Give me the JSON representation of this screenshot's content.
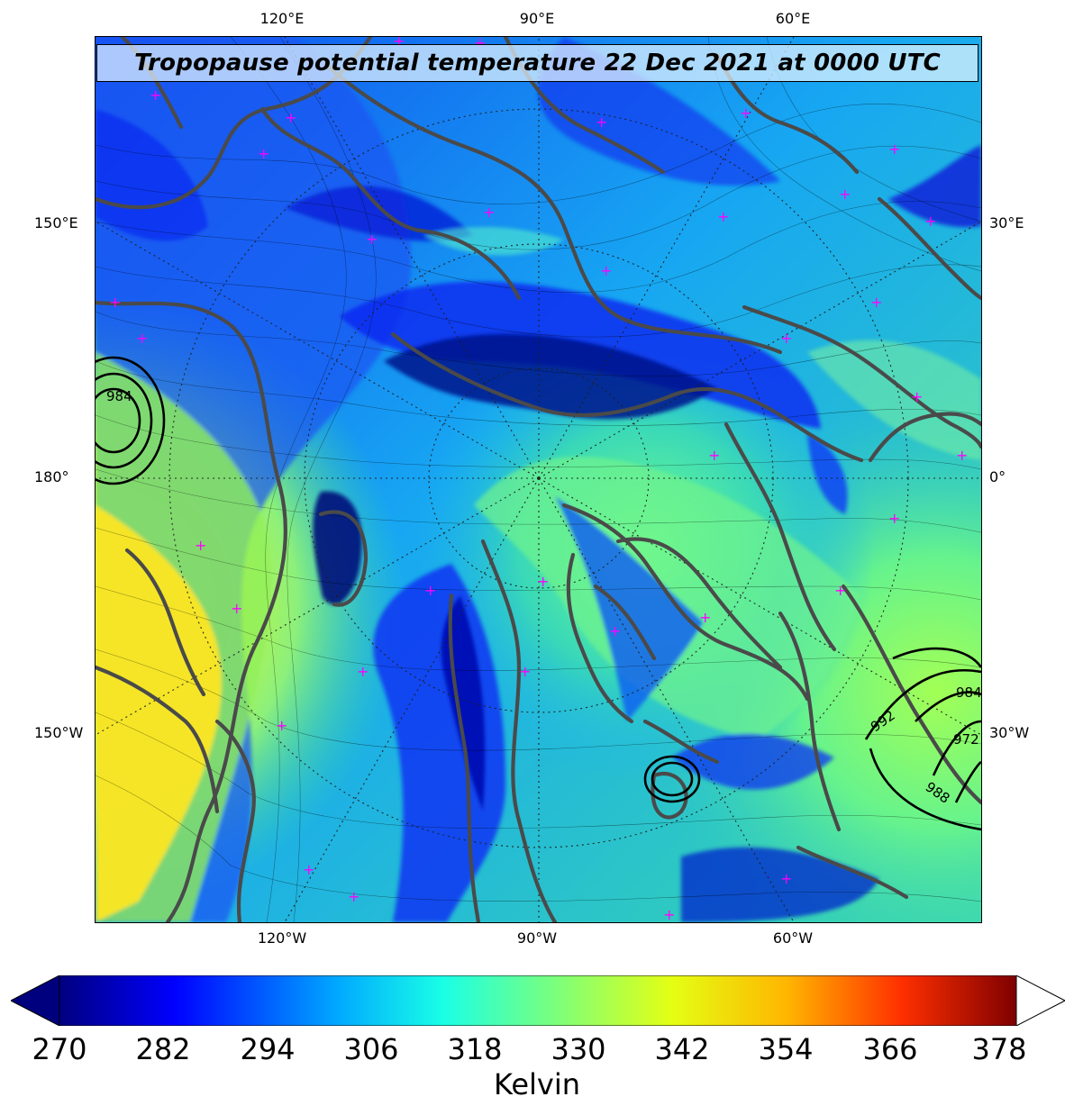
{
  "map": {
    "title": "Tropopause potential temperature 22 Dec 2021 at 0000 UTC",
    "lon_labels": {
      "top": [
        "120°E",
        "90°E",
        "60°E"
      ],
      "bottom": [
        "120°W",
        "90°W",
        "60°W"
      ],
      "left": [
        "150°E",
        "180°",
        "150°W"
      ],
      "right": [
        "30°E",
        "0°",
        "30°W"
      ]
    },
    "contour_labels": [
      "984",
      "984",
      "992",
      "972",
      "988"
    ],
    "projection": "north polar stereographic",
    "fill_variable": "tropopause potential temperature",
    "contour_variable": "sea level pressure"
  },
  "colorbar": {
    "ticks": [
      "270",
      "282",
      "294",
      "306",
      "318",
      "330",
      "342",
      "354",
      "366",
      "378"
    ],
    "label": "Kelvin",
    "min": 270,
    "max": 380,
    "extend": "both",
    "colors": {
      "under": "#00007f",
      "stops": [
        "#00007f",
        "#0000ff",
        "#00a8ff",
        "#19ffe6",
        "#7dff7a",
        "#e4ff13",
        "#ffb600",
        "#ff2f00",
        "#7f0000"
      ],
      "over": "#ffffff"
    }
  }
}
